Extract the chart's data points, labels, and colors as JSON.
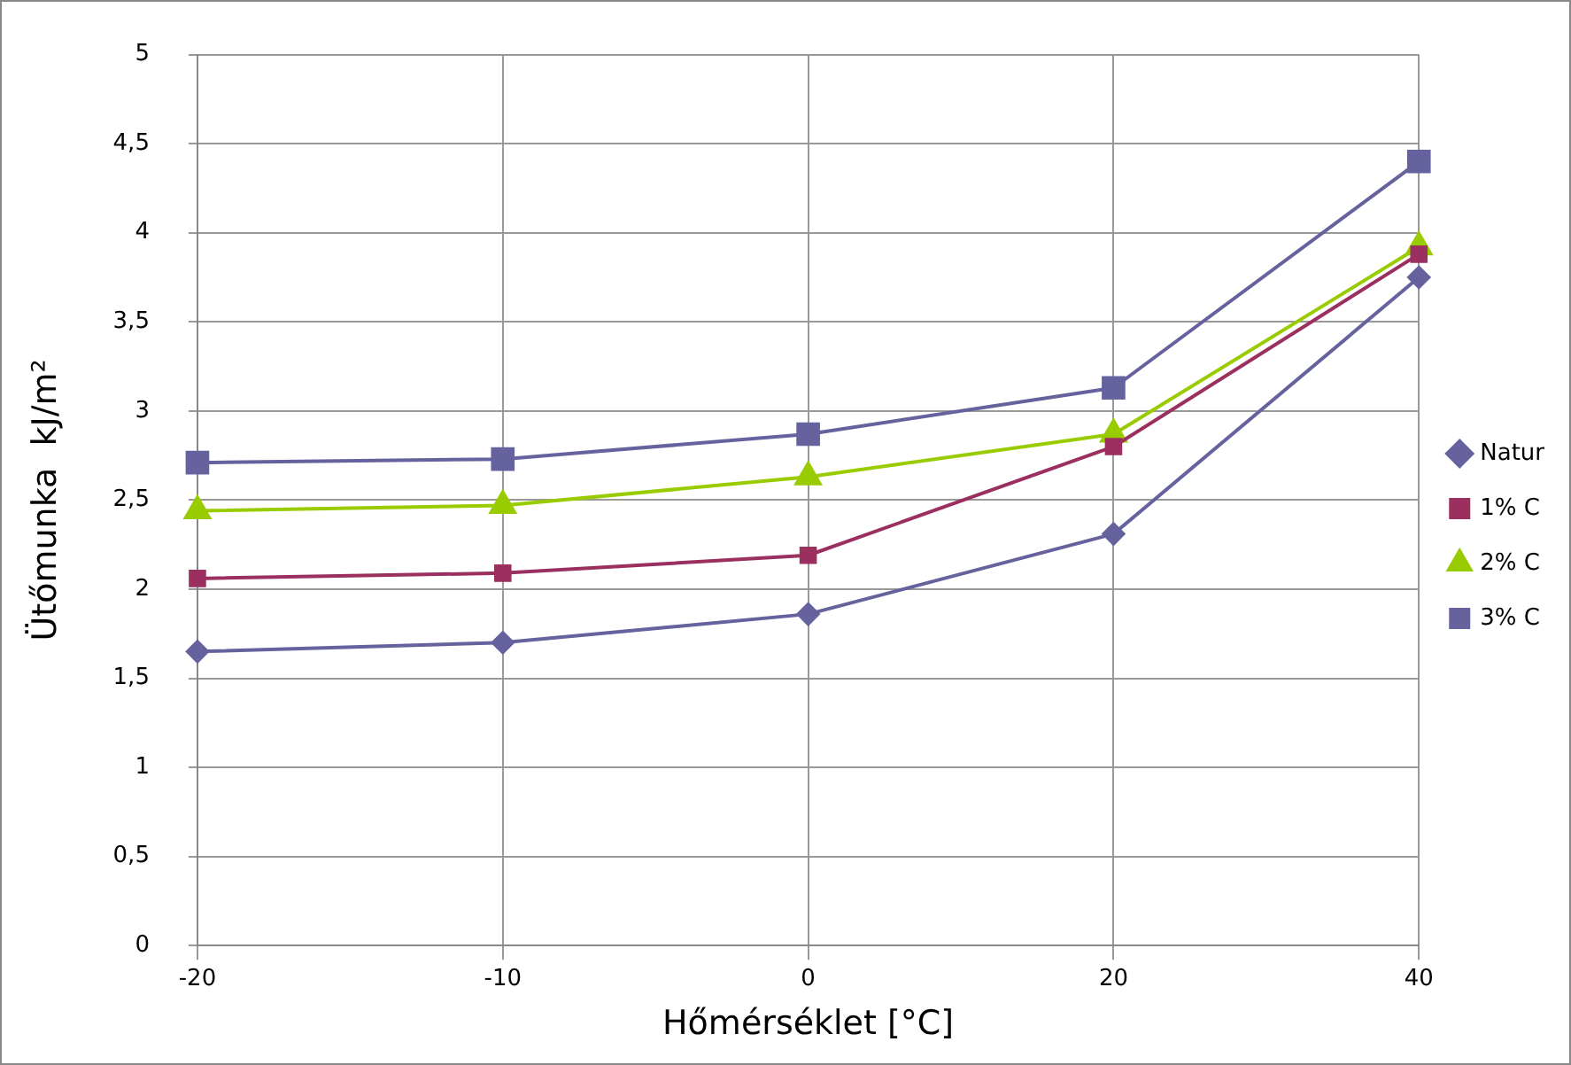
{
  "chart_data": {
    "type": "line",
    "xlabel": "Hőmérséklet [°C]",
    "ylabel": "Ütőmunka  kJ/m²",
    "categories": [
      "-20",
      "-10",
      "0",
      "20",
      "40"
    ],
    "series": [
      {
        "name": "Natur",
        "color": "#65629e",
        "marker": "diamond",
        "values": [
          1.65,
          1.7,
          1.86,
          2.31,
          3.75
        ]
      },
      {
        "name": "1% C",
        "color": "#9b2f5f",
        "marker": "square",
        "values": [
          2.06,
          2.09,
          2.19,
          2.8,
          3.88
        ]
      },
      {
        "name": "2% C",
        "color": "#99cc00",
        "marker": "triangle",
        "values": [
          2.44,
          2.47,
          2.63,
          2.87,
          3.92
        ]
      },
      {
        "name": "3% C",
        "color": "#65629e",
        "marker": "square",
        "values": [
          2.71,
          2.73,
          2.87,
          3.13,
          4.4
        ]
      }
    ],
    "ylim": [
      0,
      5
    ],
    "yticks": [
      {
        "value": 0,
        "label": "0"
      },
      {
        "value": 0.5,
        "label": "0,5"
      },
      {
        "value": 1,
        "label": "1"
      },
      {
        "value": 1.5,
        "label": "1,5"
      },
      {
        "value": 2,
        "label": "2"
      },
      {
        "value": 2.5,
        "label": "2,5"
      },
      {
        "value": 3,
        "label": "3"
      },
      {
        "value": 3.5,
        "label": "3,5"
      },
      {
        "value": 4,
        "label": "4"
      },
      {
        "value": 4.5,
        "label": "4,5"
      },
      {
        "value": 5,
        "label": "5"
      }
    ],
    "grid": true,
    "legend": "right",
    "line_style": "solid"
  }
}
